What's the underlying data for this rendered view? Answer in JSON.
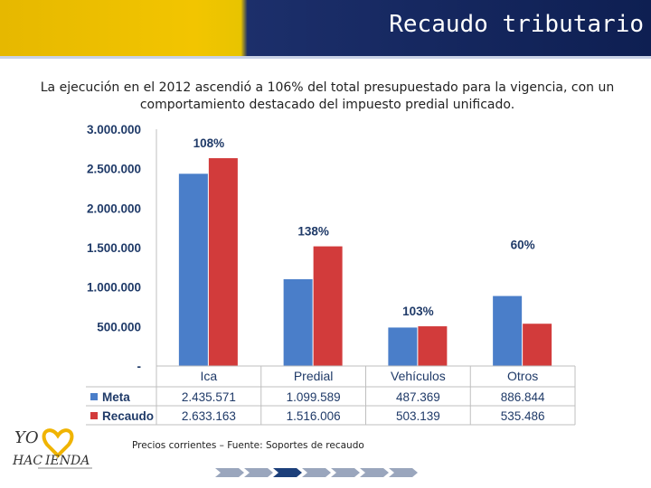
{
  "slide": {
    "title": "Recaudo tributario",
    "intro": "La ejecución en el 2012 ascendió a 106% del total presupuestado para la vigencia, con un comportamiento destacado del impuesto predial unificado.",
    "footer_note": "Precios corrientes   –  Fuente: Soportes de recaudo",
    "logo_text": "YO HACIENDA",
    "colors": {
      "header_gold": "#f2c500",
      "header_navy": "#0e1f52",
      "meta": "#4a7ec9",
      "recaudo": "#d23b3b"
    }
  },
  "chart_data": {
    "type": "bar",
    "categories": [
      "Ica",
      "Predial",
      "Vehículos",
      "Otros"
    ],
    "series": [
      {
        "name": "Meta",
        "values": [
          2435571,
          1099589,
          487369,
          886844
        ],
        "labels": [
          "2.435.571",
          "1.099.589",
          "487.369",
          "886.844"
        ],
        "color": "#4a7ec9"
      },
      {
        "name": "Recaudo",
        "values": [
          2633163,
          1516006,
          503139,
          535486
        ],
        "labels": [
          "2.633.163",
          "1.516.006",
          "503.139",
          "535.486"
        ],
        "color": "#d23b3b"
      }
    ],
    "annotations": [
      "108%",
      "138%",
      "103%",
      "60%"
    ],
    "y_ticks": [
      3000000,
      2500000,
      2000000,
      1500000,
      1000000,
      500000,
      0
    ],
    "y_tick_labels": [
      "3.000.000",
      "2.500.000",
      "2.000.000",
      "1.500.000",
      "1.000.000",
      "500.000",
      "-"
    ],
    "ylim": [
      0,
      3000000
    ],
    "legend_position": "data table below chart",
    "grid": false
  }
}
